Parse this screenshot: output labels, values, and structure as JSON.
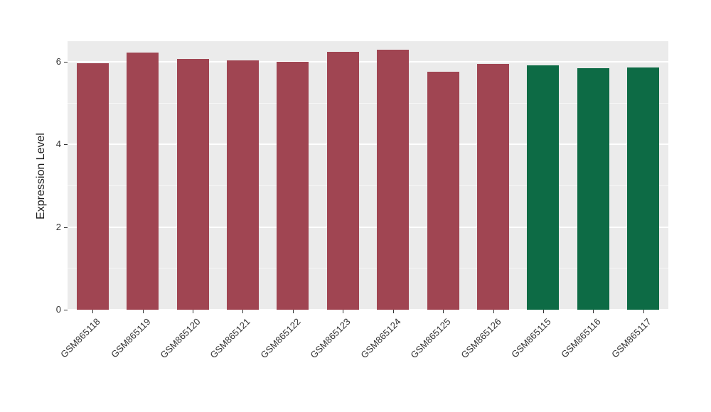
{
  "chart_data": {
    "type": "bar",
    "title": "",
    "ylabel": "Expression Level",
    "xlabel": "",
    "categories": [
      "GSM865118",
      "GSM865119",
      "GSM865120",
      "GSM865121",
      "GSM865122",
      "GSM865123",
      "GSM865124",
      "GSM865125",
      "GSM865126",
      "GSM865115",
      "GSM865116",
      "GSM865117"
    ],
    "values": [
      5.97,
      6.22,
      6.07,
      6.04,
      6.0,
      6.24,
      6.29,
      5.76,
      5.95,
      5.91,
      5.85,
      5.87
    ],
    "groups": [
      "A",
      "A",
      "A",
      "A",
      "A",
      "A",
      "A",
      "A",
      "A",
      "B",
      "B",
      "B"
    ],
    "group_colors": {
      "A": "#A04552",
      "B": "#0D6B45"
    },
    "ylim": [
      0,
      6.5
    ],
    "yticks": [
      0,
      2,
      4,
      6
    ],
    "minor_gridlines": [
      1,
      3,
      5
    ],
    "grid": "on",
    "legend": "none",
    "x_tick_rotation_deg": 45,
    "bar_width_fraction": 0.64
  },
  "style": {
    "figure_background": "#FFFFFF",
    "panel_background": "#EBEBEB",
    "grid_major_color": "#FFFFFF",
    "grid_minor_color": "rgba(255,255,255,0.55)",
    "axis_text_color": "#333333",
    "axis_title_color": "#1A1A1A",
    "tick_mark_color": "#333333"
  }
}
